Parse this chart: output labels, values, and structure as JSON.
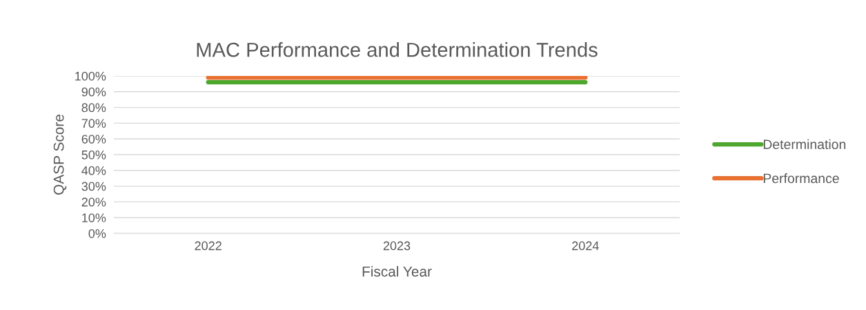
{
  "chart_data": {
    "type": "line",
    "title": "MAC Performance and Determination Trends",
    "xlabel": "Fiscal Year",
    "ylabel": "QASP Score",
    "categories": [
      "2022",
      "2023",
      "2024"
    ],
    "series": [
      {
        "name": "Determination",
        "color": "#4ea72e",
        "values": [
          96,
          96,
          96
        ]
      },
      {
        "name": "Performance",
        "color": "#e97132",
        "values": [
          99,
          99,
          99
        ]
      }
    ],
    "ylim": [
      0,
      100
    ],
    "yticks": [
      {
        "value": 0,
        "label": "0%"
      },
      {
        "value": 10,
        "label": "10%"
      },
      {
        "value": 20,
        "label": "20%"
      },
      {
        "value": 30,
        "label": "30%"
      },
      {
        "value": 40,
        "label": "40%"
      },
      {
        "value": 50,
        "label": "50%"
      },
      {
        "value": 60,
        "label": "60%"
      },
      {
        "value": 70,
        "label": "70%"
      },
      {
        "value": 80,
        "label": "80%"
      },
      {
        "value": 90,
        "label": "90%"
      },
      {
        "value": 100,
        "label": "100%"
      }
    ],
    "grid": "y",
    "legend": "right",
    "marker": "none",
    "line_style": "solid"
  }
}
